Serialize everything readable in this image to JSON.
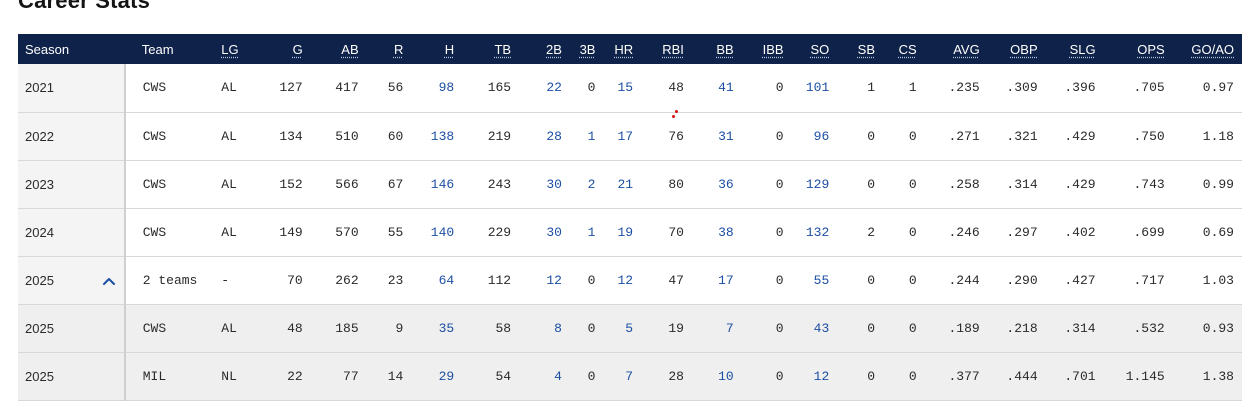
{
  "page": {
    "title": "Career Stats"
  },
  "columns": [
    "Season",
    "Team",
    "LG",
    "G",
    "AB",
    "R",
    "H",
    "TB",
    "2B",
    "3B",
    "HR",
    "RBI",
    "BB",
    "IBB",
    "SO",
    "SB",
    "CS",
    "AVG",
    "OBP",
    "SLG",
    "OPS",
    "GO/AO"
  ],
  "linked_columns": [
    "H",
    "2B",
    "3B",
    "HR",
    "BB",
    "SO"
  ],
  "colors": {
    "header_bg": "#0f2249",
    "link": "#1c4fa3",
    "sub_row_bg": "#efefef"
  },
  "rows": [
    {
      "season": "2021",
      "team": "CWS",
      "lg": "AL",
      "g": "127",
      "ab": "417",
      "r": "56",
      "h": "98",
      "tb": "165",
      "b2": "22",
      "b3": "0",
      "hr": "15",
      "rbi": "48",
      "bb": "41",
      "ibb": "0",
      "so": "101",
      "sb": "1",
      "cs": "1",
      "avg": ".235",
      "obp": ".309",
      "slg": ".396",
      "ops": ".705",
      "goao": "0.97"
    },
    {
      "season": "2022",
      "team": "CWS",
      "lg": "AL",
      "g": "134",
      "ab": "510",
      "r": "60",
      "h": "138",
      "tb": "219",
      "b2": "28",
      "b3": "1",
      "hr": "17",
      "rbi": "76",
      "bb": "31",
      "ibb": "0",
      "so": "96",
      "sb": "0",
      "cs": "0",
      "avg": ".271",
      "obp": ".321",
      "slg": ".429",
      "ops": ".750",
      "goao": "1.18"
    },
    {
      "season": "2023",
      "team": "CWS",
      "lg": "AL",
      "g": "152",
      "ab": "566",
      "r": "67",
      "h": "146",
      "tb": "243",
      "b2": "30",
      "b3": "2",
      "hr": "21",
      "rbi": "80",
      "bb": "36",
      "ibb": "0",
      "so": "129",
      "sb": "0",
      "cs": "0",
      "avg": ".258",
      "obp": ".314",
      "slg": ".429",
      "ops": ".743",
      "goao": "0.99"
    },
    {
      "season": "2024",
      "team": "CWS",
      "lg": "AL",
      "g": "149",
      "ab": "570",
      "r": "55",
      "h": "140",
      "tb": "229",
      "b2": "30",
      "b3": "1",
      "hr": "19",
      "rbi": "70",
      "bb": "38",
      "ibb": "0",
      "so": "132",
      "sb": "2",
      "cs": "0",
      "avg": ".246",
      "obp": ".297",
      "slg": ".402",
      "ops": ".699",
      "goao": "0.69"
    },
    {
      "season": "2025",
      "team": "2 teams",
      "lg": "-",
      "g": "70",
      "ab": "262",
      "r": "23",
      "h": "64",
      "tb": "112",
      "b2": "12",
      "b3": "0",
      "hr": "12",
      "rbi": "47",
      "bb": "17",
      "ibb": "0",
      "so": "55",
      "sb": "0",
      "cs": "0",
      "avg": ".244",
      "obp": ".290",
      "slg": ".427",
      "ops": ".717",
      "goao": "1.03",
      "expanded": true,
      "expand_icon": "chevron-up-icon"
    },
    {
      "season": "2025",
      "team": "CWS",
      "lg": "AL",
      "g": "48",
      "ab": "185",
      "r": "9",
      "h": "35",
      "tb": "58",
      "b2": "8",
      "b3": "0",
      "hr": "5",
      "rbi": "19",
      "bb": "7",
      "ibb": "0",
      "so": "43",
      "sb": "0",
      "cs": "0",
      "avg": ".189",
      "obp": ".218",
      "slg": ".314",
      "ops": ".532",
      "goao": "0.93",
      "sub": true
    },
    {
      "season": "2025",
      "team": "MIL",
      "lg": "NL",
      "g": "22",
      "ab": "77",
      "r": "14",
      "h": "29",
      "tb": "54",
      "b2": "4",
      "b3": "0",
      "hr": "7",
      "rbi": "28",
      "bb": "10",
      "ibb": "0",
      "so": "12",
      "sb": "0",
      "cs": "0",
      "avg": ".377",
      "obp": ".444",
      "slg": ".701",
      "ops": "1.145",
      "goao": "1.38",
      "sub": true
    }
  ]
}
